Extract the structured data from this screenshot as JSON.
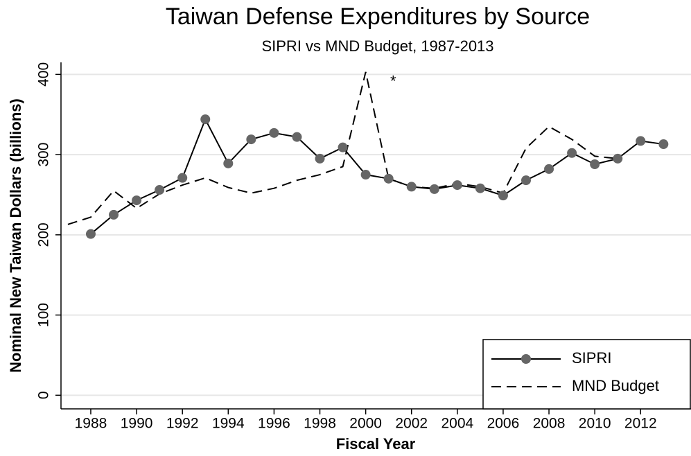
{
  "chart_data": {
    "type": "line",
    "title": "Taiwan Defense Expenditures by Source",
    "subtitle": "SIPRI vs MND Budget, 1987-2013",
    "x_label": "Fiscal Year",
    "y_label": "Nominal New Taiwan Dollars (billions)",
    "annotation": "*",
    "annotation_x": 2001.2,
    "annotation_y": 390,
    "xlim": [
      1986.7,
      2014.2
    ],
    "xticks": [
      1988,
      1990,
      1992,
      1994,
      1996,
      1998,
      2000,
      2002,
      2004,
      2006,
      2008,
      2010,
      2012
    ],
    "ylim": [
      -17,
      415
    ],
    "yticks": [
      0,
      100,
      200,
      300,
      400
    ],
    "grid": true,
    "legend": "bottom-right",
    "series": [
      {
        "name": "SIPRI",
        "color": "#000000",
        "marker_color": "#666666",
        "dash": false,
        "marker": true,
        "x": [
          1988,
          1989,
          1990,
          1991,
          1992,
          1993,
          1994,
          1995,
          1996,
          1997,
          1998,
          1999,
          2000,
          2001,
          2002,
          2003,
          2004,
          2005,
          2006,
          2007,
          2008,
          2009,
          2010,
          2011,
          2012,
          2013
        ],
        "values": [
          201,
          225,
          243,
          256,
          271,
          344,
          289,
          319,
          327,
          322,
          295,
          309,
          275,
          270,
          260,
          257,
          262,
          258,
          249,
          268,
          282,
          302,
          288,
          295,
          317,
          313
        ]
      },
      {
        "name": "MND Budget",
        "color": "#000000",
        "dash": true,
        "marker": false,
        "x": [
          1987,
          1988,
          1989,
          1990,
          1991,
          1992,
          1993,
          1994,
          1995,
          1996,
          1997,
          1998,
          1999,
          2000,
          2001,
          2002,
          2003,
          2004,
          2005,
          2006,
          2007,
          2008,
          2009,
          2010,
          2011
        ],
        "values": [
          213,
          222,
          255,
          233,
          251,
          262,
          271,
          259,
          252,
          258,
          268,
          275,
          285,
          403,
          270,
          260,
          258,
          264,
          260,
          252,
          308,
          335,
          319,
          298,
          295
        ]
      }
    ]
  }
}
